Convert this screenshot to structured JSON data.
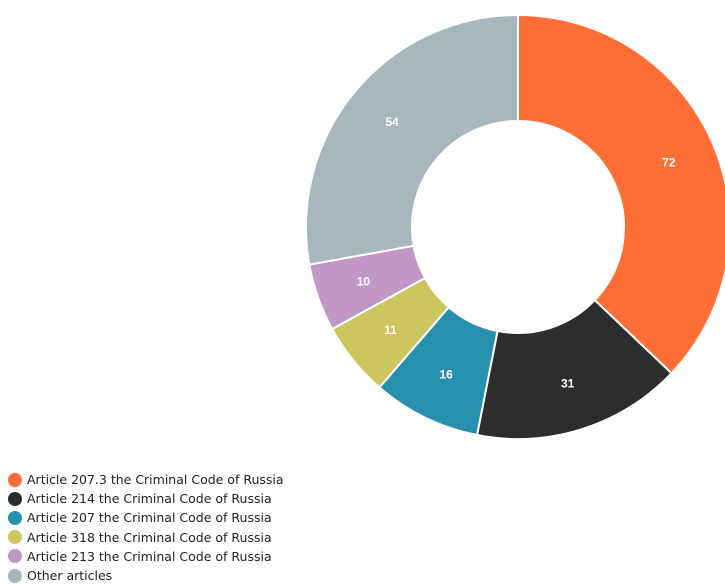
{
  "chart_data": {
    "type": "pie",
    "donut": true,
    "legend_position": "bottom-left",
    "categories": [
      "Article 207.3 the Criminal Code of Russia",
      "Article 214 the Criminal Code of Russia",
      "Article 207 the Criminal Code of Russia",
      "Article 318 the Criminal Code of Russia",
      "Article 213 the Criminal Code of Russia",
      "Other articles"
    ],
    "values": [
      72,
      31,
      16,
      11,
      10,
      54
    ],
    "colors": [
      "#ff6e37",
      "#2d2d2d",
      "#2790ad",
      "#cbc65e",
      "#c297c7",
      "#a7b7bc"
    ]
  }
}
